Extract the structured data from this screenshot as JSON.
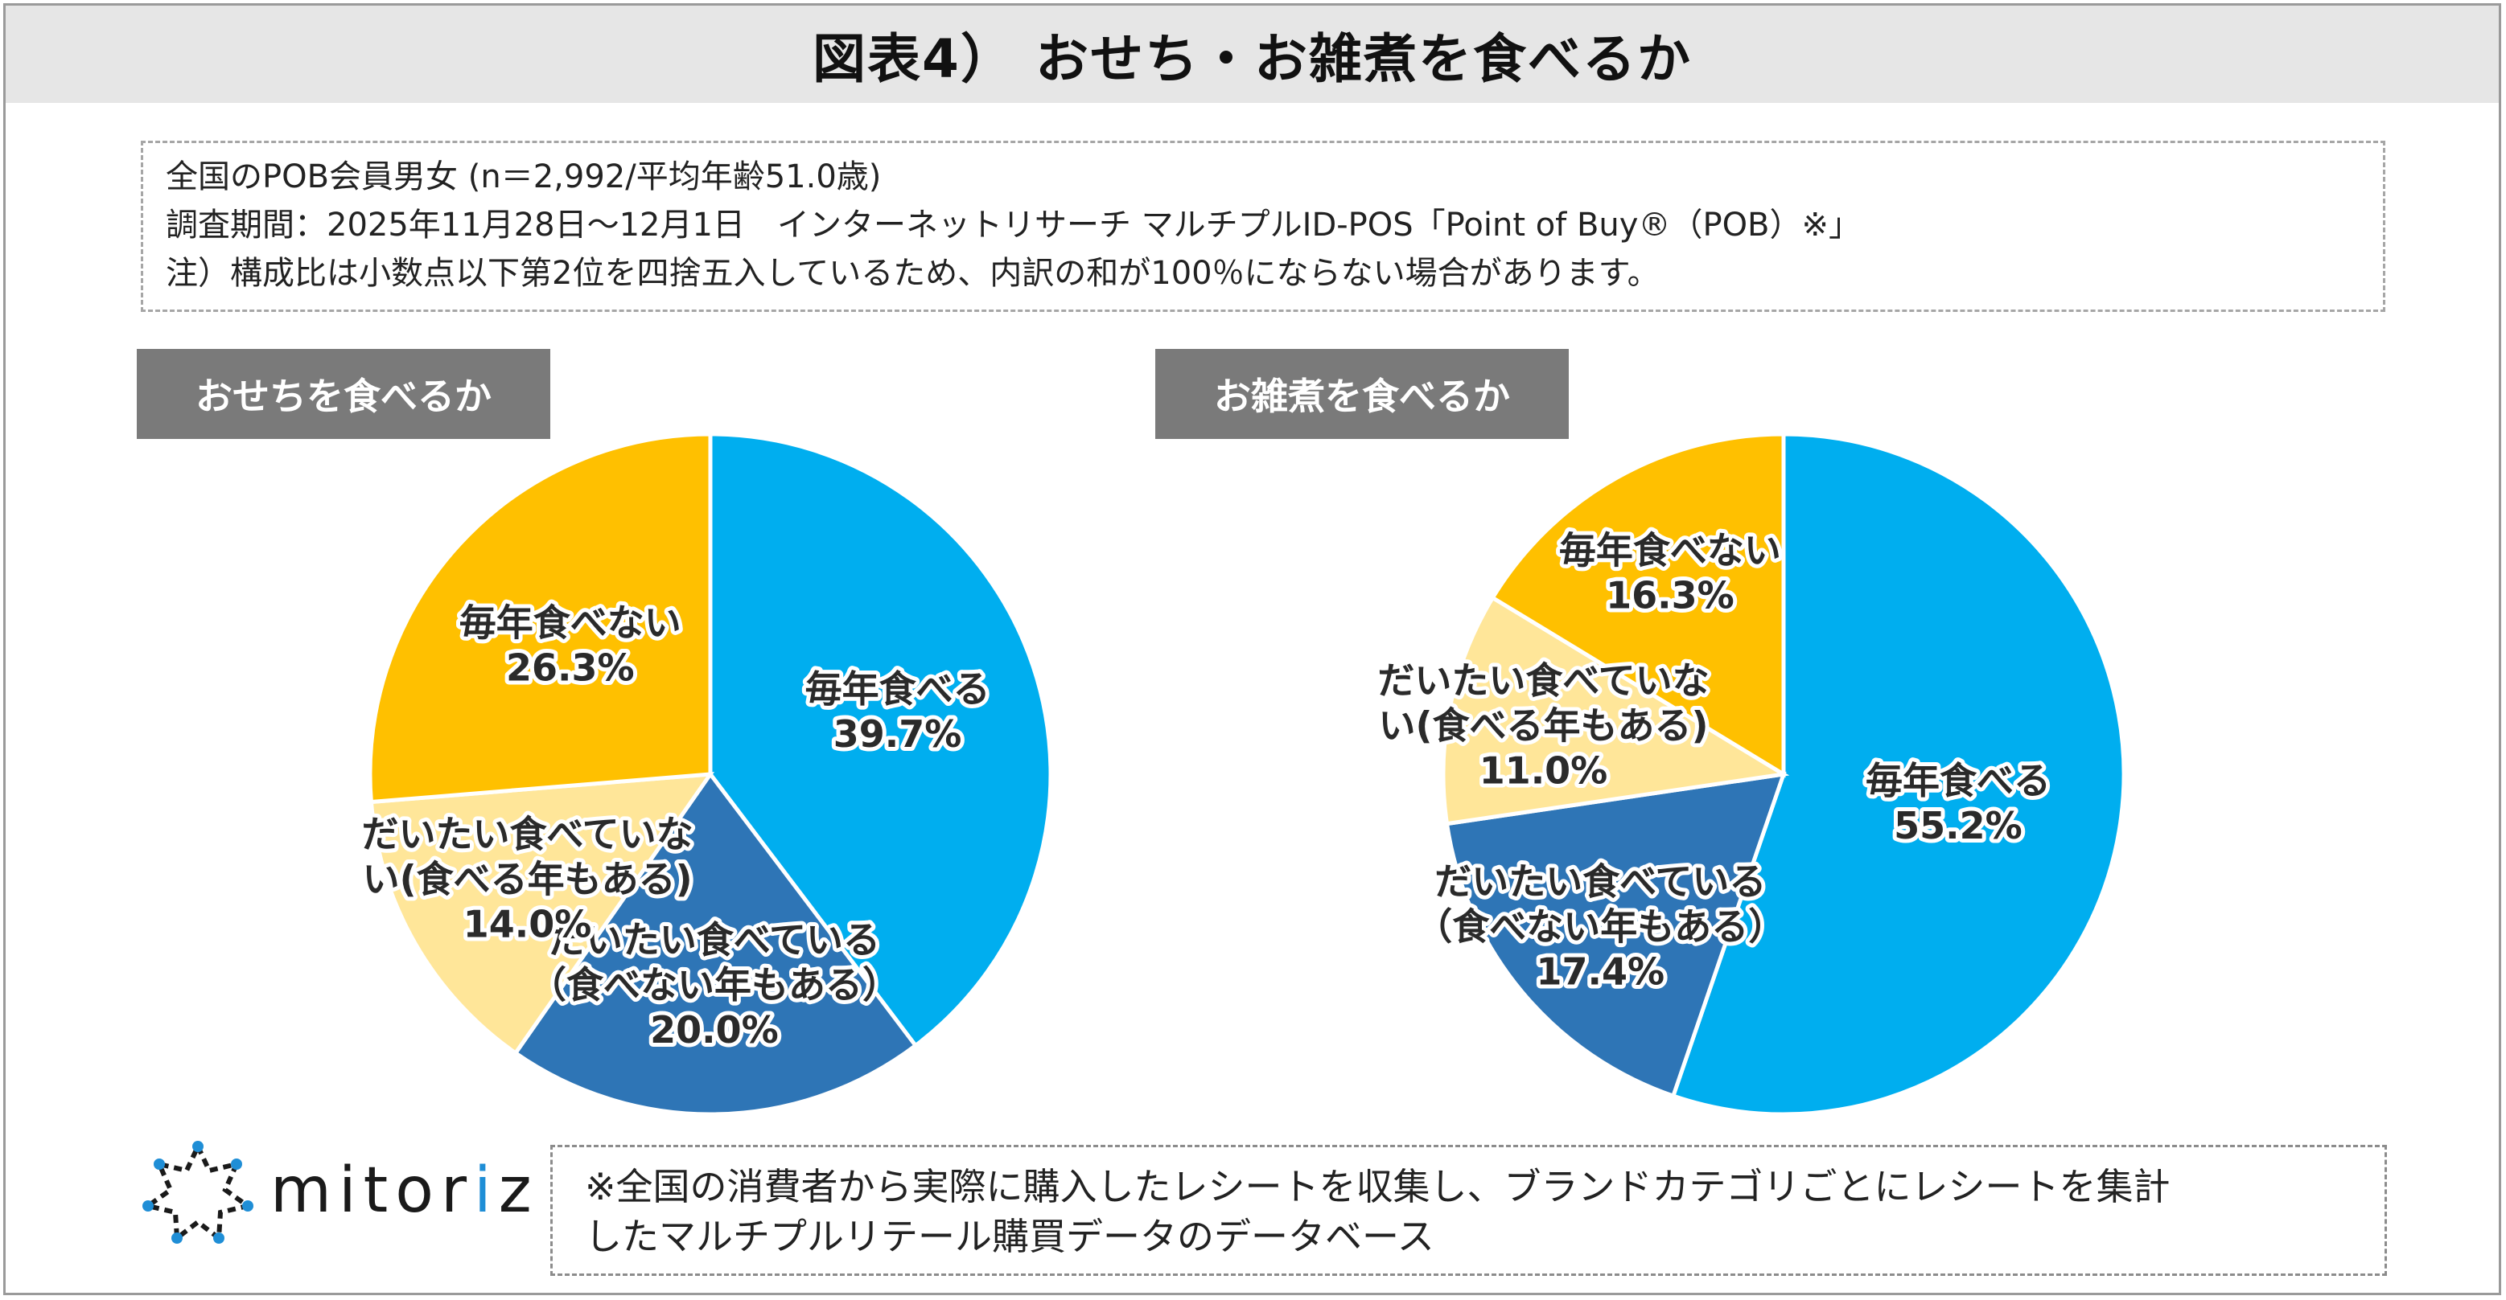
{
  "title": "図表4） おせち・お雑煮を食べるか",
  "notes": [
    "全国のPOB会員男女 (n＝2,992/平均年齢51.0歳)",
    "調査期間：2025年11月28日～12月1日　インターネットリサーチ マルチプルID-POS「Point of Buy®（POB）※」",
    "注）構成比は小数点以下第2位を四捨五入しているため、内訳の和が100％にならない場合があります。"
  ],
  "chart_data": [
    {
      "type": "pie",
      "title": "おせちを食べるか",
      "start": "12 o'clock",
      "direction": "clockwise",
      "slices": [
        {
          "label_lines": [
            "毎年食べる"
          ],
          "value": 39.7,
          "value_label": "39.7%",
          "color": "#00AEEF"
        },
        {
          "label_lines": [
            "だいたい食べている",
            "（食べない年もある）"
          ],
          "value": 20.0,
          "value_label": "20.0%",
          "color": "#2E75B6"
        },
        {
          "label_lines": [
            "だいたい食べていな",
            "い(食べる年もある)"
          ],
          "value": 14.0,
          "value_label": "14.0%",
          "color": "#FFE699"
        },
        {
          "label_lines": [
            "毎年食べない"
          ],
          "value": 26.3,
          "value_label": "26.3%",
          "color": "#FFC000"
        }
      ]
    },
    {
      "type": "pie",
      "title": "お雑煮を食べるか",
      "start": "12 o'clock",
      "direction": "clockwise",
      "slices": [
        {
          "label_lines": [
            "毎年食べる"
          ],
          "value": 55.2,
          "value_label": "55.2%",
          "color": "#00AEEF"
        },
        {
          "label_lines": [
            "だいたい食べている",
            "（食べない年もある）"
          ],
          "value": 17.4,
          "value_label": "17.4%",
          "color": "#2E75B6"
        },
        {
          "label_lines": [
            "だいたい食べていな",
            "い(食べる年もある)"
          ],
          "value": 11.0,
          "value_label": "11.0%",
          "color": "#FFE699"
        },
        {
          "label_lines": [
            "毎年食べない"
          ],
          "value": 16.3,
          "value_label": "16.3%",
          "color": "#FFC000"
        }
      ]
    }
  ],
  "logo": {
    "text_main": "mitor",
    "text_accent": "i",
    "text_tail": "z"
  },
  "footnote": [
    "※全国の消費者から実際に購入したレシートを収集し、ブランドカテゴリごとにレシートを集計",
    "したマルチプルリテール購買データのデータベース"
  ]
}
